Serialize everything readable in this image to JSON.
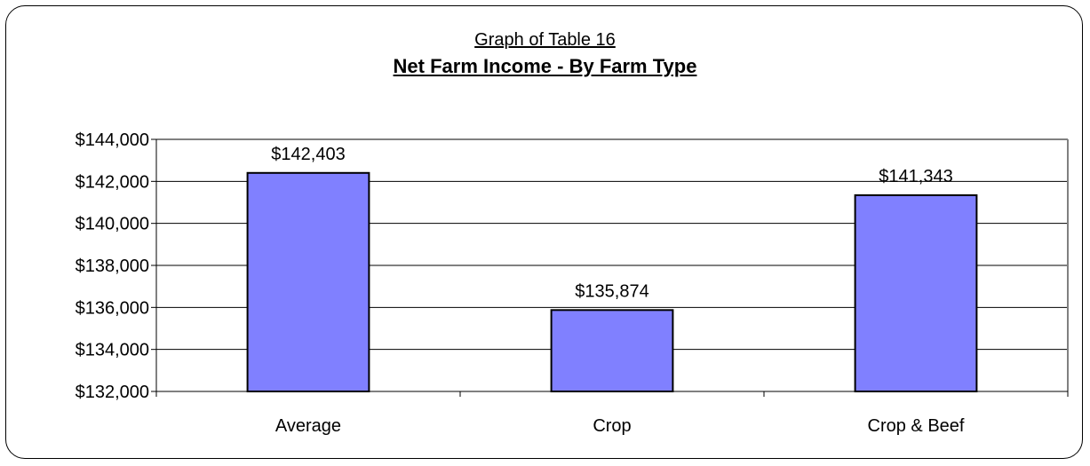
{
  "chart_data": {
    "type": "bar",
    "subtitle": "Graph of Table 16",
    "title": "Net Farm Income - By Farm Type",
    "categories": [
      "Average",
      "Crop",
      "Crop & Beef"
    ],
    "values": [
      142403,
      135874,
      141343
    ],
    "value_labels": [
      "$142,403",
      "$135,874",
      "$141,343"
    ],
    "ylim": [
      132000,
      144000
    ],
    "yticks": [
      132000,
      134000,
      136000,
      138000,
      140000,
      142000,
      144000
    ],
    "ytick_labels": [
      "$132,000",
      "$134,000",
      "$136,000",
      "$138,000",
      "$140,000",
      "$142,000",
      "$144,000"
    ],
    "xlabel": "",
    "ylabel": "",
    "grid": true,
    "legend": "none",
    "colors": {
      "bar_fill": "#8080ff",
      "bar_stroke": "#000000",
      "gridline": "#000000",
      "plot_border": "#808080"
    }
  }
}
